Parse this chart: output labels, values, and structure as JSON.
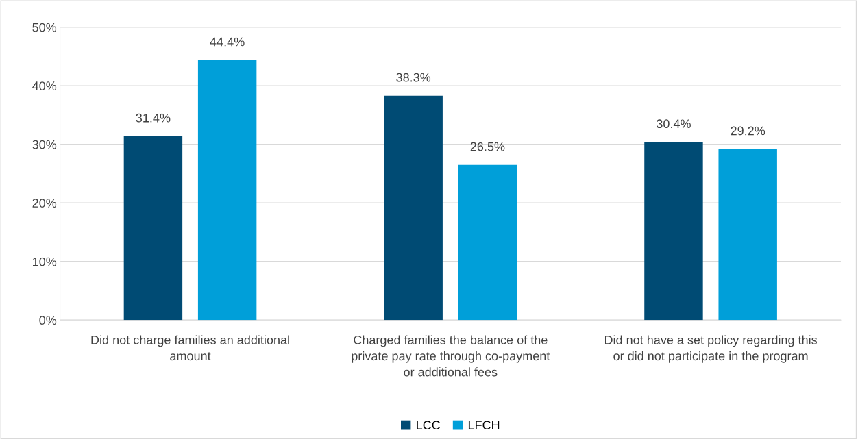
{
  "chart_data": {
    "type": "bar",
    "categories": [
      "Did not charge families an additional\namount",
      "Charged families the balance of the\nprivate pay rate through co-payment\nor additional fees",
      "Did not have a set policy regarding this\nor did not participate in the program"
    ],
    "series": [
      {
        "name": "LCC",
        "color": "#004b74",
        "values": [
          31.4,
          38.3,
          30.4
        ],
        "value_labels": [
          "31.4%",
          "38.3%",
          "30.4%"
        ]
      },
      {
        "name": "LFCH",
        "color": "#009fd9",
        "values": [
          44.4,
          26.5,
          29.2
        ],
        "value_labels": [
          "44.4%",
          "26.5%",
          "29.2%"
        ]
      }
    ],
    "ylim": [
      0,
      50
    ],
    "yticks": [
      {
        "value": 0,
        "label": "0%"
      },
      {
        "value": 10,
        "label": "10%"
      },
      {
        "value": 20,
        "label": "20%"
      },
      {
        "value": 30,
        "label": "30%"
      },
      {
        "value": 40,
        "label": "40%"
      },
      {
        "value": 50,
        "label": "50%"
      }
    ],
    "grid": "y",
    "legend": "bottom"
  }
}
